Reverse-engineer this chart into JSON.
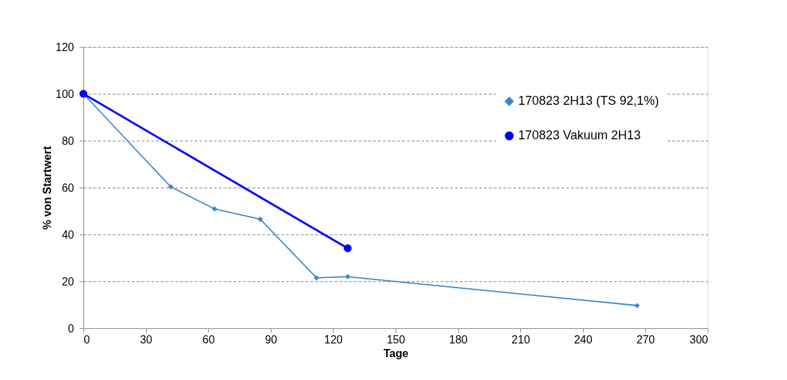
{
  "chart_data": {
    "type": "line",
    "xlabel": "Tage",
    "ylabel": "% von Startwert",
    "xlim": [
      0,
      300
    ],
    "xticks": [
      0,
      30,
      60,
      90,
      120,
      150,
      180,
      210,
      240,
      270,
      300
    ],
    "ylim": [
      0,
      120
    ],
    "yticks": [
      0,
      20,
      40,
      60,
      80,
      100,
      120
    ],
    "grid": "y",
    "legend": "top right",
    "line_style": "solid",
    "series": [
      {
        "name": "170823 2H13 (TS 92,1%)",
        "color": "#3c87c8",
        "marker": "diamond",
        "x": [
          0,
          42,
          63,
          85,
          112,
          127,
          266
        ],
        "values": [
          100,
          60.3,
          50.9,
          46.5,
          21.5,
          22,
          9.7
        ]
      },
      {
        "name": "170823 Vakuum 2H13",
        "color": "#0000ff",
        "marker": "circle",
        "x": [
          0,
          127
        ],
        "values": [
          100,
          34.1
        ]
      }
    ]
  }
}
